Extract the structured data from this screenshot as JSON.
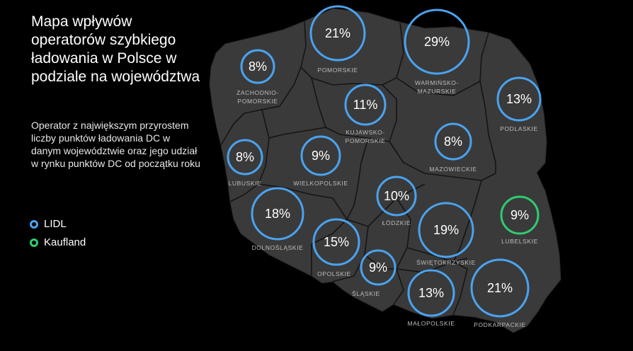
{
  "title": "Mapa wpływów operatorów szybkiego ładowania w Polsce w podziale na województwa",
  "subtitle": "Operator z największym przyrostem liczby punktów ładowania DC w danym województwie oraz jego udział w rynku punktów DC od początku roku",
  "legend": [
    {
      "label": "LIDL",
      "color": "#4aa3f0"
    },
    {
      "label": "Kaufland",
      "color": "#2ecc71"
    }
  ],
  "colors": {
    "map_fill": "#3a3a3a",
    "border": "#151515",
    "lidl": "#4aa3f0",
    "kaufland": "#2ecc71"
  },
  "regions": [
    {
      "name": "ZACHODNIO-\nPOMORSKIE",
      "share": "8%",
      "operator": "LIDL"
    },
    {
      "name": "POMORSKIE",
      "share": "21%",
      "operator": "LIDL"
    },
    {
      "name": "WARMIŃSKO-\nMAZURSKIE",
      "share": "29%",
      "operator": "LIDL"
    },
    {
      "name": "PODLASKIE",
      "share": "13%",
      "operator": "LIDL"
    },
    {
      "name": "KUJAWSKO-\nPOMORSKIE",
      "share": "11%",
      "operator": "LIDL"
    },
    {
      "name": "LUBUSKIE",
      "share": "8%",
      "operator": "LIDL"
    },
    {
      "name": "WIELKOPOLSKIE",
      "share": "9%",
      "operator": "LIDL"
    },
    {
      "name": "MAZOWIECKIE",
      "share": "8%",
      "operator": "LIDL"
    },
    {
      "name": "ŁÓDZKIE",
      "share": "10%",
      "operator": "LIDL"
    },
    {
      "name": "LUBELSKIE",
      "share": "9%",
      "operator": "Kaufland"
    },
    {
      "name": "DOLNOŚLĄSKIE",
      "share": "18%",
      "operator": "LIDL"
    },
    {
      "name": "OPOLSKIE",
      "share": "15%",
      "operator": "LIDL"
    },
    {
      "name": "ŚLĄSKIE",
      "share": "9%",
      "operator": "LIDL"
    },
    {
      "name": "ŚWIĘTOKRZYSKIE",
      "share": "19%",
      "operator": "LIDL"
    },
    {
      "name": "MAŁOPOLSKIE",
      "share": "13%",
      "operator": "LIDL"
    },
    {
      "name": "PODKARPACKIE",
      "share": "21%",
      "operator": "LIDL"
    }
  ]
}
